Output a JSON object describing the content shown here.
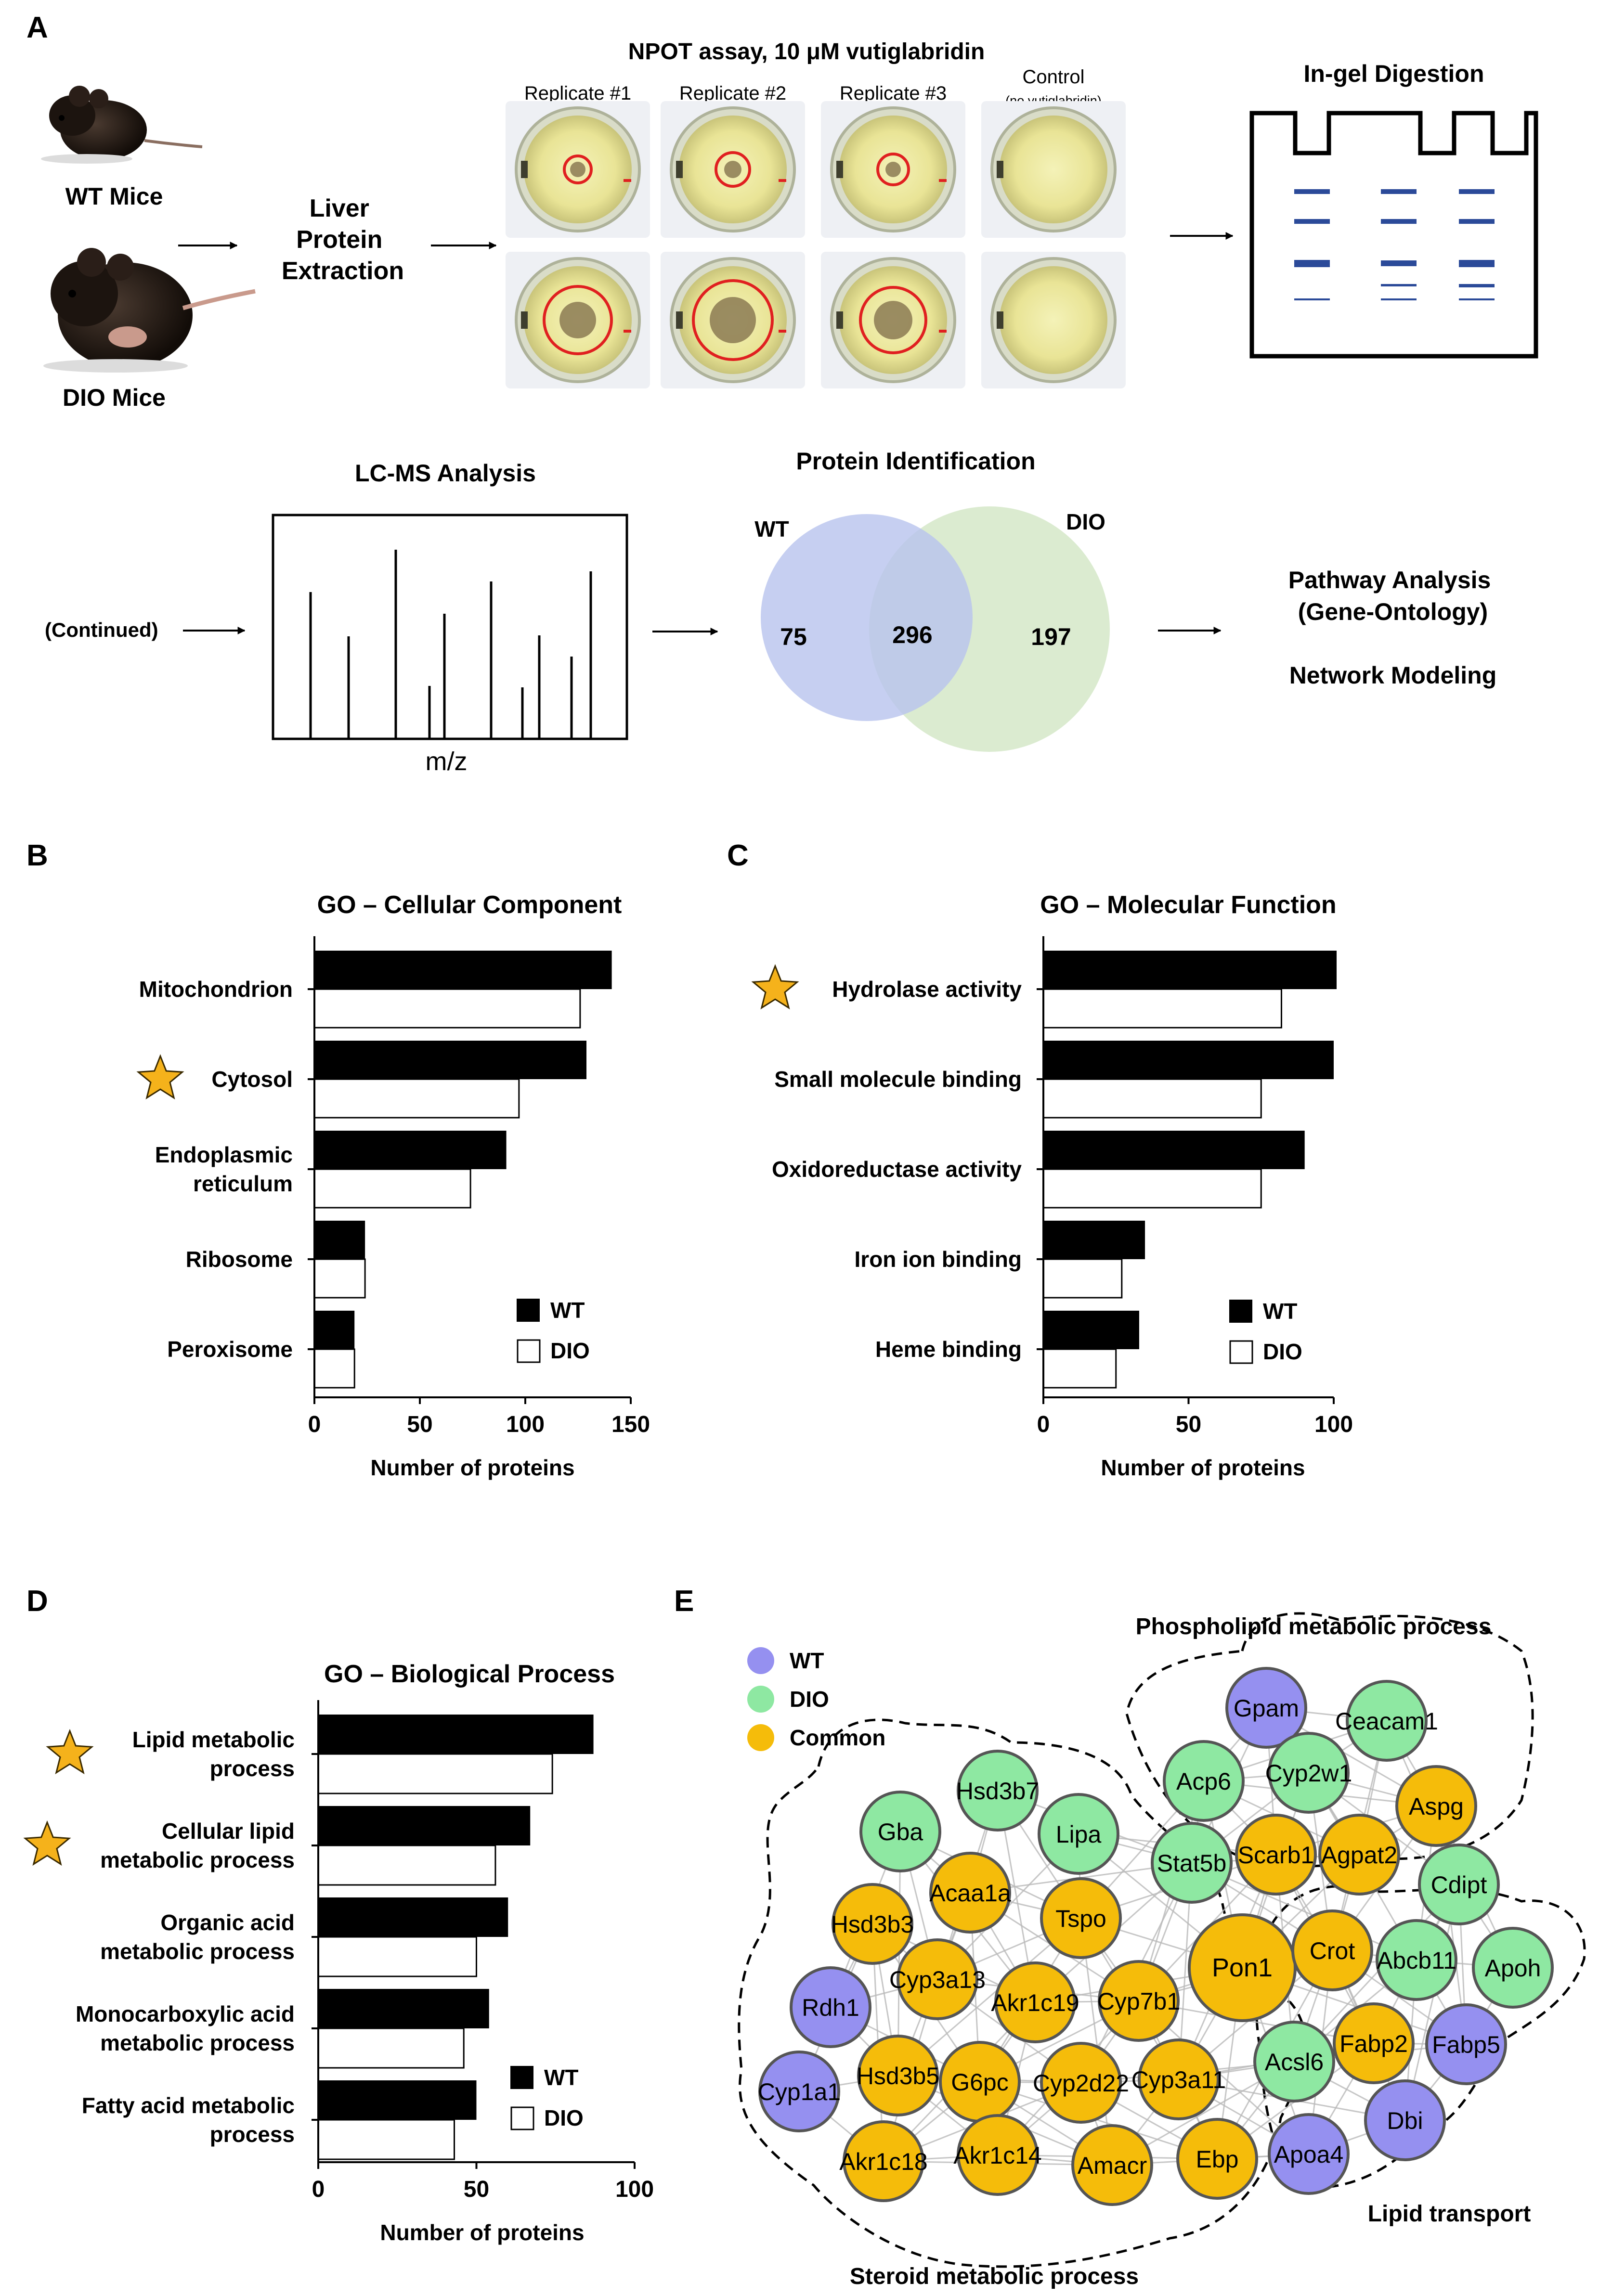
{
  "panel_letters": {
    "a": "A",
    "b": "B",
    "c": "C",
    "d": "D",
    "e": "E"
  },
  "panel_a": {
    "wt_mice": "WT Mice",
    "dio_mice": "DIO Mice",
    "liver": [
      "Liver",
      "Protein",
      "Extraction"
    ],
    "npot_title": "NPOT assay, 10 μM vutiglabridin",
    "replicates": [
      "Replicate #1",
      "Replicate #2",
      "Replicate #3"
    ],
    "control": "Control",
    "control_note": "(no vutiglabridin)",
    "ingel": "In-gel Digestion",
    "lcms": "LC-MS Analysis",
    "mz": "m/z",
    "continued": "(Continued)",
    "protein_id": "Protein Identification",
    "venn_wt": "WT",
    "venn_dio": "DIO",
    "venn_wt_only": "75",
    "venn_common": "296",
    "venn_dio_only": "197",
    "pathway": [
      "Pathway Analysis",
      "(Gene-Ontology)"
    ],
    "network": "Network Modeling",
    "colors": {
      "venn_wt": "#c3cdf0",
      "venn_dio": "#d5e8c8",
      "gel_band": "#2b4a99"
    }
  },
  "chart_data": [
    {
      "type": "bar",
      "panel": "B",
      "title": "GO – Cellular Component",
      "categories": [
        "Mitochondrion",
        "Cytosol",
        "Endoplasmic reticulum",
        "Ribosome",
        "Peroxisome"
      ],
      "series": [
        {
          "name": "WT",
          "values": [
            141,
            129,
            91,
            24,
            19
          ]
        },
        {
          "name": "DIO",
          "values": [
            126,
            97,
            74,
            24,
            19
          ]
        }
      ],
      "xlabel": "Number of proteins",
      "xticks": [
        "0",
        "50",
        "100",
        "150"
      ],
      "xlim": [
        0,
        150
      ],
      "starred": [
        "Cytosol"
      ],
      "legend": [
        "WT",
        "DIO"
      ]
    },
    {
      "type": "bar",
      "panel": "C",
      "title": "GO – Molecular Function",
      "categories": [
        "Hydrolase activity",
        "Small molecule binding",
        "Oxidoreductase activity",
        "Iron ion binding",
        "Heme binding"
      ],
      "series": [
        {
          "name": "WT",
          "values": [
            101,
            100,
            90,
            35,
            33
          ]
        },
        {
          "name": "DIO",
          "values": [
            82,
            75,
            75,
            27,
            25
          ]
        }
      ],
      "xlabel": "Number of proteins",
      "xticks": [
        "0",
        "50",
        "100"
      ],
      "xlim": [
        0,
        100
      ],
      "starred": [
        "Hydrolase activity"
      ],
      "legend": [
        "WT",
        "DIO"
      ]
    },
    {
      "type": "bar",
      "panel": "D",
      "title": "GO – Biological Process",
      "categories": [
        "Lipid metabolic process",
        "Cellular lipid metabolic process",
        "Organic acid metabolic process",
        "Monocarboxylic acid metabolic process",
        "Fatty acid metabolic process"
      ],
      "series": [
        {
          "name": "WT",
          "values": [
            87,
            67,
            60,
            54,
            50
          ]
        },
        {
          "name": "DIO",
          "values": [
            74,
            56,
            50,
            46,
            43
          ]
        }
      ],
      "xlabel": "Number of proteins",
      "xticks": [
        "0",
        "50",
        "100"
      ],
      "xlim": [
        0,
        100
      ],
      "starred": [
        "Lipid metabolic process",
        "Cellular lipid metabolic process"
      ],
      "legend": [
        "WT",
        "DIO"
      ]
    }
  ],
  "panel_b_labels": [
    [
      "Mitochondrion"
    ],
    [
      "Cytosol"
    ],
    [
      "Endoplasmic",
      "reticulum"
    ],
    [
      "Ribosome"
    ],
    [
      "Peroxisome"
    ]
  ],
  "panel_c_labels": [
    [
      "Hydrolase activity"
    ],
    [
      "Small molecule binding"
    ],
    [
      "Oxidoreductase activity"
    ],
    [
      "Iron ion binding"
    ],
    [
      "Heme binding"
    ]
  ],
  "panel_d_labels": [
    [
      "Lipid metabolic",
      "process"
    ],
    [
      "Cellular lipid",
      "metabolic process"
    ],
    [
      "Organic acid",
      "metabolic process"
    ],
    [
      "Monocarboxylic acid",
      "metabolic process"
    ],
    [
      "Fatty acid metabolic",
      "process"
    ]
  ],
  "panel_e": {
    "legend": [
      {
        "label": "WT",
        "color": "#9590f0"
      },
      {
        "label": "DIO",
        "color": "#8ee8a2"
      },
      {
        "label": "Common",
        "color": "#f5bc0a"
      }
    ],
    "group_labels": {
      "phospholipid": "Phospholipid metabolic process",
      "steroid": "Steroid metabolic process",
      "transport": "Lipid transport"
    },
    "nodes": [
      {
        "label": "Gpam",
        "group": "WT"
      },
      {
        "label": "Ceacam1",
        "group": "DIO"
      },
      {
        "label": "Acp6",
        "group": "DIO"
      },
      {
        "label": "Cyp2w1",
        "group": "DIO"
      },
      {
        "label": "Aspg",
        "group": "Common"
      },
      {
        "label": "Stat5b",
        "group": "DIO"
      },
      {
        "label": "Scarb1",
        "group": "Common"
      },
      {
        "label": "Agpat2",
        "group": "Common"
      },
      {
        "label": "Cdipt",
        "group": "DIO"
      },
      {
        "label": "Gba",
        "group": "DIO"
      },
      {
        "label": "Hsd3b7",
        "group": "DIO"
      },
      {
        "label": "Lipa",
        "group": "DIO"
      },
      {
        "label": "Acaa1a",
        "group": "Common"
      },
      {
        "label": "Hsd3b3",
        "group": "Common"
      },
      {
        "label": "Tspo",
        "group": "Common"
      },
      {
        "label": "Pon1",
        "group": "Common"
      },
      {
        "label": "Crot",
        "group": "Common"
      },
      {
        "label": "Abcb11",
        "group": "DIO"
      },
      {
        "label": "Apoh",
        "group": "DIO"
      },
      {
        "label": "Rdh1",
        "group": "WT"
      },
      {
        "label": "Cyp3a13",
        "group": "Common"
      },
      {
        "label": "Akr1c19",
        "group": "Common"
      },
      {
        "label": "Cyp7b1",
        "group": "Common"
      },
      {
        "label": "Fabp2",
        "group": "Common"
      },
      {
        "label": "Fabp5",
        "group": "WT"
      },
      {
        "label": "Cyp1a1",
        "group": "WT"
      },
      {
        "label": "Hsd3b5",
        "group": "Common"
      },
      {
        "label": "G6pc",
        "group": "Common"
      },
      {
        "label": "Cyp2d22",
        "group": "Common"
      },
      {
        "label": "Cyp3a11",
        "group": "Common"
      },
      {
        "label": "Acsl6",
        "group": "DIO"
      },
      {
        "label": "Dbi",
        "group": "WT"
      },
      {
        "label": "Akr1c18",
        "group": "Common"
      },
      {
        "label": "Akr1c14",
        "group": "Common"
      },
      {
        "label": "Amacr",
        "group": "Common"
      },
      {
        "label": "Ebp",
        "group": "Common"
      },
      {
        "label": "Apoa4",
        "group": "WT"
      }
    ]
  }
}
